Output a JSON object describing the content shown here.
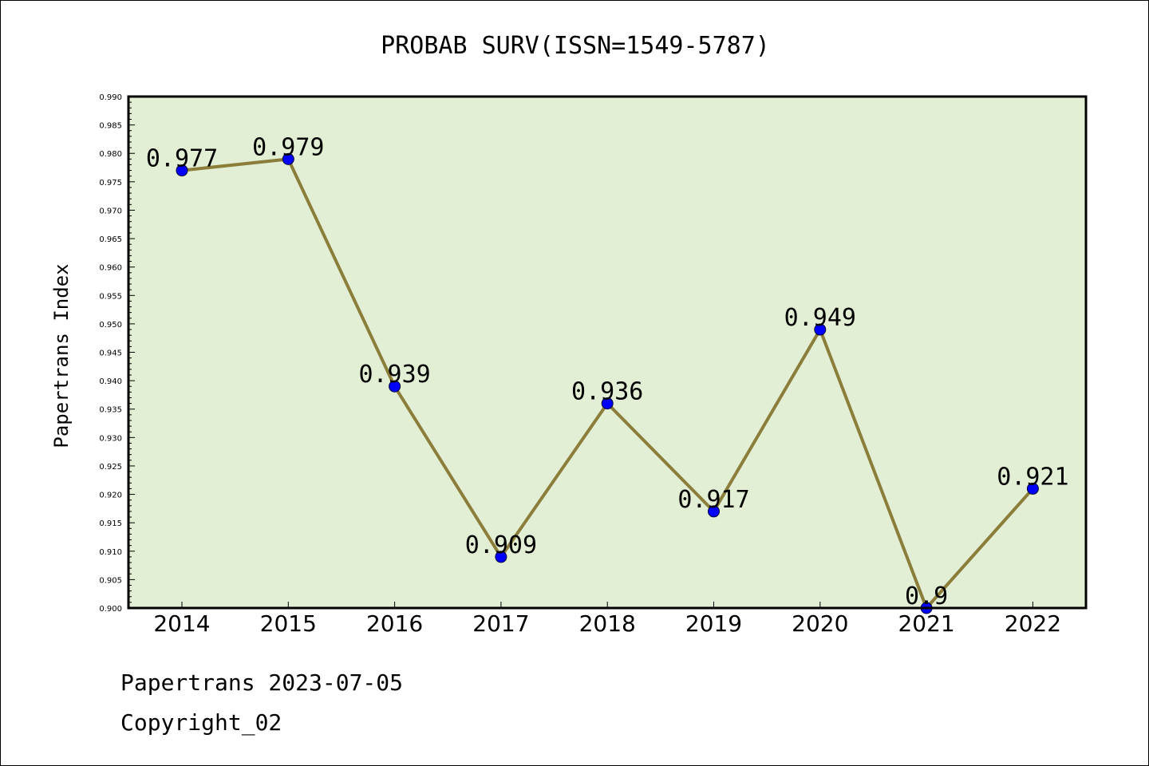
{
  "chart_data": {
    "type": "line",
    "title": "PROBAB SURV(ISSN=1549-5787)",
    "ylabel": "Papertrans Index",
    "xlabel": "",
    "categories": [
      "2014",
      "2015",
      "2016",
      "2017",
      "2018",
      "2019",
      "2020",
      "2021",
      "2022"
    ],
    "values": [
      0.977,
      0.979,
      0.939,
      0.909,
      0.936,
      0.917,
      0.949,
      0.9,
      0.921
    ],
    "data_labels": [
      "0.977",
      "0.979",
      "0.939",
      "0.909",
      "0.936",
      "0.917",
      "0.949",
      "0.9",
      "0.921"
    ],
    "ylim": [
      0.9,
      0.99
    ],
    "yticks": [
      "0.900",
      "0.905",
      "0.910",
      "0.915",
      "0.920",
      "0.925",
      "0.930",
      "0.935",
      "0.940",
      "0.945",
      "0.950",
      "0.955",
      "0.960",
      "0.965",
      "0.970",
      "0.975",
      "0.980",
      "0.985",
      "0.990"
    ],
    "line_color": "#8b7d3a",
    "marker_color": "#0000ff",
    "plot_background": "#e2efd5",
    "grid": false,
    "legend": "none"
  },
  "footer": {
    "line1": "Papertrans 2023-07-05",
    "line2": "Copyright_02"
  }
}
